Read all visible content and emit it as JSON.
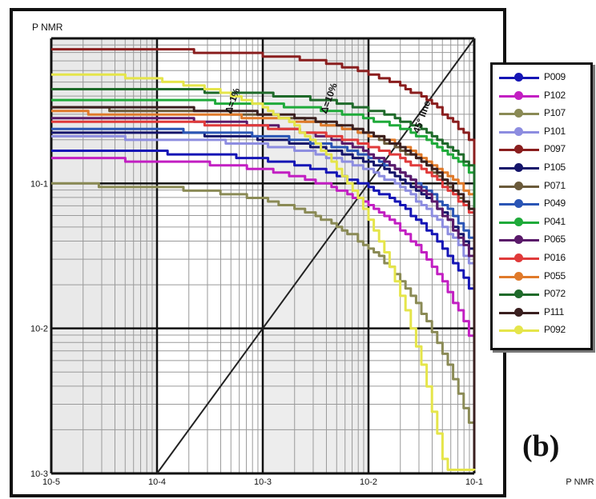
{
  "chart_data": {
    "type": "line",
    "xscale": "log",
    "yscale": "log",
    "xlim": [
      0.0001,
      1
    ],
    "ylim": [
      0.001,
      1
    ],
    "xlabel": "P NMR",
    "ylabel": "P NMR",
    "x_tick_labels": [
      "10-5",
      "10-4",
      "10-3",
      "10-2",
      "10-1",
      "P NMR"
    ],
    "y_tick_labels": [
      "10-3",
      "10-2",
      "10-1"
    ],
    "grid": true,
    "legend_position": "right",
    "annotations": [
      "Δ=1%",
      "Δ=10%",
      "45° line"
    ],
    "diagonal": [
      [
        0.001,
        0.001
      ],
      [
        1,
        1
      ]
    ],
    "series": [
      {
        "name": "P009",
        "color": "#1515b5",
        "plateau": 0.17,
        "knee": 0.03
      },
      {
        "name": "P102",
        "color": "#c21fc2",
        "plateau": 0.15,
        "knee": 0.02
      },
      {
        "name": "P107",
        "color": "#8a8a55",
        "plateau": 0.1,
        "knee": 0.012
      },
      {
        "name": "P101",
        "color": "#8d8de0",
        "plateau": 0.21,
        "knee": 0.035
      },
      {
        "name": "P097",
        "color": "#8a1e1e",
        "plateau": 0.85,
        "knee": 0.06
      },
      {
        "name": "P105",
        "color": "#15156b",
        "plateau": 0.23,
        "knee": 0.04
      },
      {
        "name": "P071",
        "color": "#6a5a3a",
        "plateau": 0.33,
        "knee": 0.05
      },
      {
        "name": "P049",
        "color": "#2a55b5",
        "plateau": 0.24,
        "knee": 0.045
      },
      {
        "name": "P041",
        "color": "#1faa3a",
        "plateau": 0.38,
        "knee": 0.09
      },
      {
        "name": "P065",
        "color": "#5a1a6a",
        "plateau": 0.29,
        "knee": 0.03
      },
      {
        "name": "P016",
        "color": "#e03a3a",
        "plateau": 0.27,
        "knee": 0.06
      },
      {
        "name": "P055",
        "color": "#e07a2a",
        "plateau": 0.31,
        "knee": 0.07
      },
      {
        "name": "P072",
        "color": "#1f6a2a",
        "plateau": 0.45,
        "knee": 0.08
      },
      {
        "name": "P111",
        "color": "#3a1f1f",
        "plateau": 0.34,
        "knee": 0.05
      },
      {
        "name": "P092",
        "color": "#e5e54a",
        "plateau": 0.6,
        "knee": 0.003
      }
    ]
  },
  "panel_label": "(b)"
}
